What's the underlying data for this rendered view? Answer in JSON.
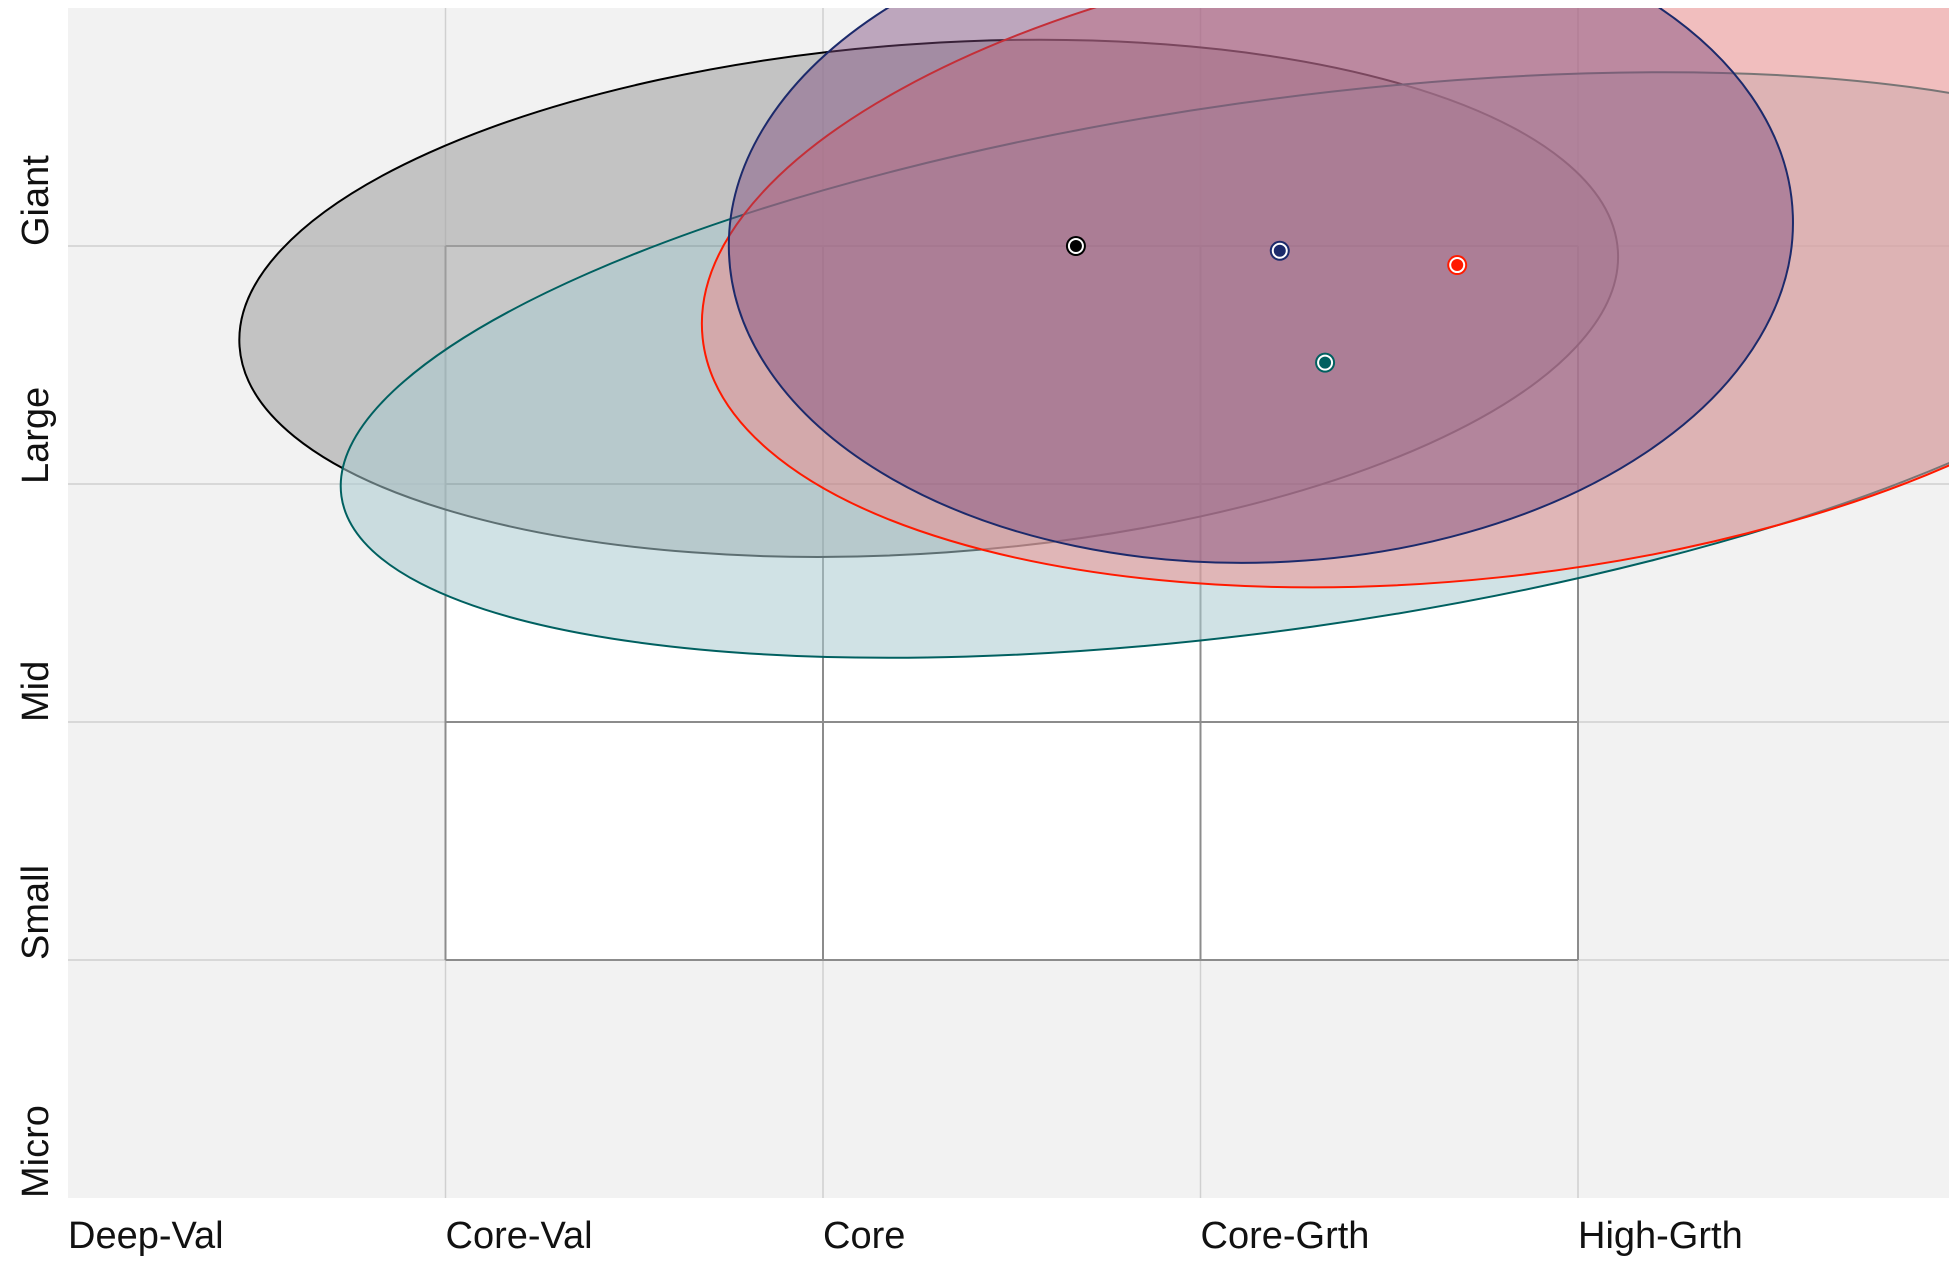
{
  "chart_data": {
    "type": "scatter",
    "title": "",
    "xlabel": "",
    "ylabel": "",
    "x_categories": [
      "Deep-Val",
      "Core-Val",
      "Core",
      "Core-Grth",
      "High-Grth"
    ],
    "y_categories": [
      "Micro",
      "Small",
      "Mid",
      "Large",
      "Giant"
    ],
    "xlim": [
      0,
      5
    ],
    "ylim": [
      0,
      5
    ],
    "grid": true,
    "highlight_box": {
      "x_range": [
        1,
        4
      ],
      "y_range": [
        1,
        4
      ]
    },
    "series": [
      {
        "color": "#000000",
        "fill": "#a6a6a6",
        "fill_opacity": 0.62,
        "point": {
          "x": 2.67,
          "y": 4.0
        },
        "ellipse": {
          "cx": 2.28,
          "cy": 3.78,
          "rx": 1.83,
          "ry": 1.07,
          "rotation": -4
        }
      },
      {
        "color": "#006060",
        "fill": "#a9cbd0",
        "fill_opacity": 0.55,
        "point": {
          "x": 3.33,
          "y": 3.51
        },
        "ellipse": {
          "cx": 3.2,
          "cy": 3.5,
          "rx": 2.5,
          "ry": 1.11,
          "rotation": -8
        }
      },
      {
        "color": "#ff1a00",
        "fill": "#f08a8a",
        "fill_opacity": 0.5,
        "point": {
          "x": 3.68,
          "y": 3.92
        },
        "ellipse": {
          "cx": 3.7,
          "cy": 3.95,
          "rx": 2.03,
          "ry": 1.35,
          "rotation": -6
        }
      },
      {
        "color": "#1c2a6b",
        "fill": "#7d4a7d",
        "fill_opacity": 0.45,
        "point": {
          "x": 3.21,
          "y": 3.98
        },
        "ellipse": {
          "cx": 3.16,
          "cy": 4.05,
          "rx": 1.41,
          "ry": 1.38,
          "rotation": -2
        }
      }
    ]
  }
}
